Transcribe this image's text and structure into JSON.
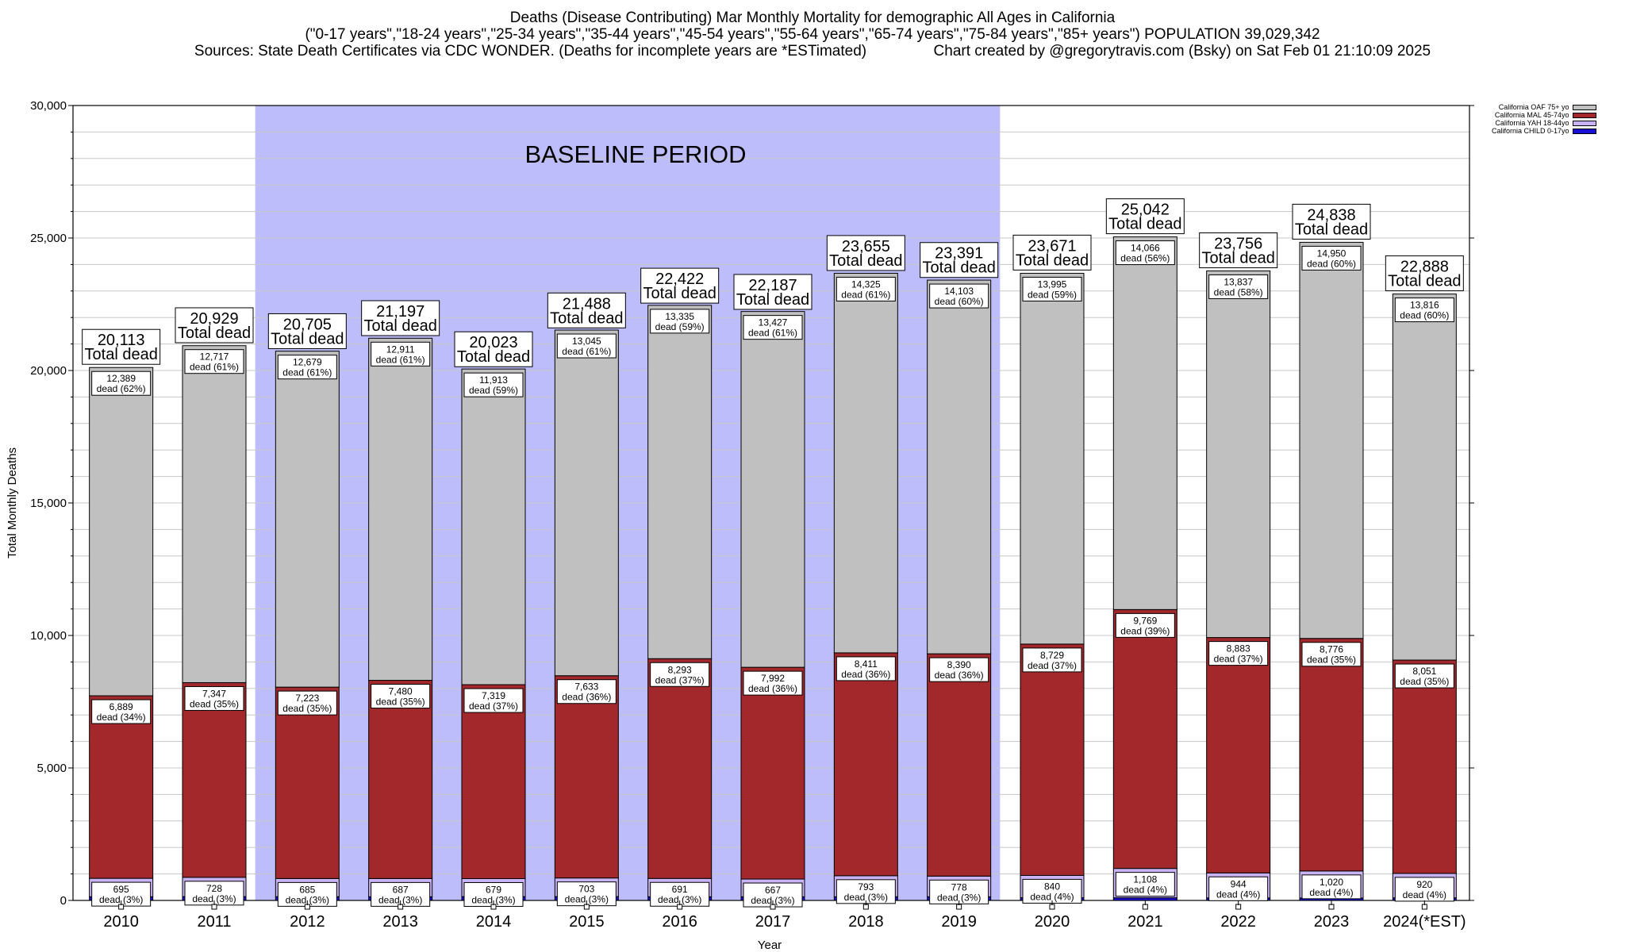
{
  "title": {
    "line1": "Deaths (Disease Contributing) Mar Monthly Mortality for demographic All Ages in California",
    "line2": "(\"0-17 years\",\"18-24 years\",\"25-34 years\",\"35-44 years\",\"45-54 years\",\"55-64 years\",\"65-74 years\",\"75-84 years\",\"85+ years\") POPULATION 39,029,342",
    "line3": "Sources: State Death Certificates via CDC WONDER. (Deaths for incomplete years are *ESTimated)                Chart created by @gregorytravis.com (Bsky) on Sat Feb 01 21:10:09 2025"
  },
  "chart_data": {
    "type": "bar",
    "stacked": true,
    "categories": [
      "2010",
      "2011",
      "2012",
      "2013",
      "2014",
      "2015",
      "2016",
      "2017",
      "2018",
      "2019",
      "2020",
      "2021",
      "2022",
      "2023",
      "2024(*EST)"
    ],
    "xlabel": "Year",
    "ylabel": "Total Monthly Deaths",
    "ylim": [
      0,
      30000
    ],
    "yticks": [
      0,
      5000,
      10000,
      15000,
      20000,
      25000,
      30000
    ],
    "ytick_labels": [
      "0",
      "5,000",
      "10,000",
      "15,000",
      "20,000",
      "25,000",
      "30,000"
    ],
    "grid": true,
    "legend_position": "top-right",
    "baseline_label": "BASELINE PERIOD",
    "baseline_range": [
      "2012",
      "2019"
    ],
    "total_suffix": "Total dead",
    "totals": [
      20113,
      20929,
      20705,
      21197,
      20023,
      21488,
      22422,
      22187,
      23655,
      23391,
      23671,
      25042,
      23756,
      24838,
      22888
    ],
    "series": [
      {
        "name": "California CHILD 0-17yo",
        "color": "#1a0fd6",
        "values": [
          140,
          145,
          142,
          140,
          145,
          145,
          140,
          140,
          140,
          140,
          105,
          100,
          95,
          92,
          100
        ],
        "labels": [
          "",
          "",
          "",
          "",
          "",
          "",
          "",
          "",
          "",
          "",
          "",
          "",
          "",
          "",
          ""
        ]
      },
      {
        "name": "California YAH 18-44yo",
        "color": "#c9b3f5",
        "values": [
          695,
          728,
          685,
          687,
          679,
          703,
          691,
          667,
          793,
          778,
          840,
          1108,
          944,
          1020,
          920
        ],
        "labels": [
          "695\ndead (3%)",
          "728\ndead (3%)",
          "685\ndead (3%)",
          "687\ndead (3%)",
          "679\ndead (3%)",
          "703\ndead (3%)",
          "691\ndead (3%)",
          "667\ndead (3%)",
          "793\ndead (3%)",
          "778\ndead (3%)",
          "840\ndead (4%)",
          "1,108\ndead (4%)",
          "944\ndead (4%)",
          "1,020\ndead (4%)",
          "920\ndead (4%)"
        ]
      },
      {
        "name": "California MAL 45-74yo",
        "color": "#a3282c",
        "values": [
          6889,
          7347,
          7223,
          7480,
          7319,
          7633,
          8293,
          7992,
          8411,
          8390,
          8729,
          9769,
          8883,
          8776,
          8051
        ],
        "labels": [
          "6,889\ndead (34%)",
          "7,347\ndead (35%)",
          "7,223\ndead (35%)",
          "7,480\ndead (35%)",
          "7,319\ndead (37%)",
          "7,633\ndead (36%)",
          "8,293\ndead (37%)",
          "7,992\ndead (36%)",
          "8,411\ndead (36%)",
          "8,390\ndead (36%)",
          "8,729\ndead (37%)",
          "9,769\ndead (39%)",
          "8,883\ndead (37%)",
          "8,776\ndead (35%)",
          "8,051\ndead (35%)"
        ]
      },
      {
        "name": "California OAF 75+ yo",
        "color": "#c0c0c0",
        "values": [
          12389,
          12717,
          12679,
          12911,
          11913,
          13045,
          13335,
          13427,
          14325,
          14103,
          13995,
          14066,
          13837,
          14950,
          13816
        ],
        "labels": [
          "12,389\ndead (62%)",
          "12,717\ndead (61%)",
          "12,679\ndead (61%)",
          "12,911\ndead (61%)",
          "11,913\ndead (59%)",
          "13,045\ndead (61%)",
          "13,335\ndead (59%)",
          "13,427\ndead (61%)",
          "14,325\ndead (61%)",
          "14,103\ndead (60%)",
          "13,995\ndead (59%)",
          "14,066\ndead (56%)",
          "13,837\ndead (58%)",
          "14,950\ndead (60%)",
          "13,816\ndead (60%)"
        ]
      }
    ],
    "legend_entries": [
      {
        "label": "California OAF 75+ yo",
        "color": "#c0c0c0"
      },
      {
        "label": "California MAL 45-74yo",
        "color": "#a3282c"
      },
      {
        "label": "California YAH 18-44yo",
        "color": "#c9b3f5"
      },
      {
        "label": "California CHILD 0-17yo",
        "color": "#1a0fd6"
      }
    ]
  }
}
